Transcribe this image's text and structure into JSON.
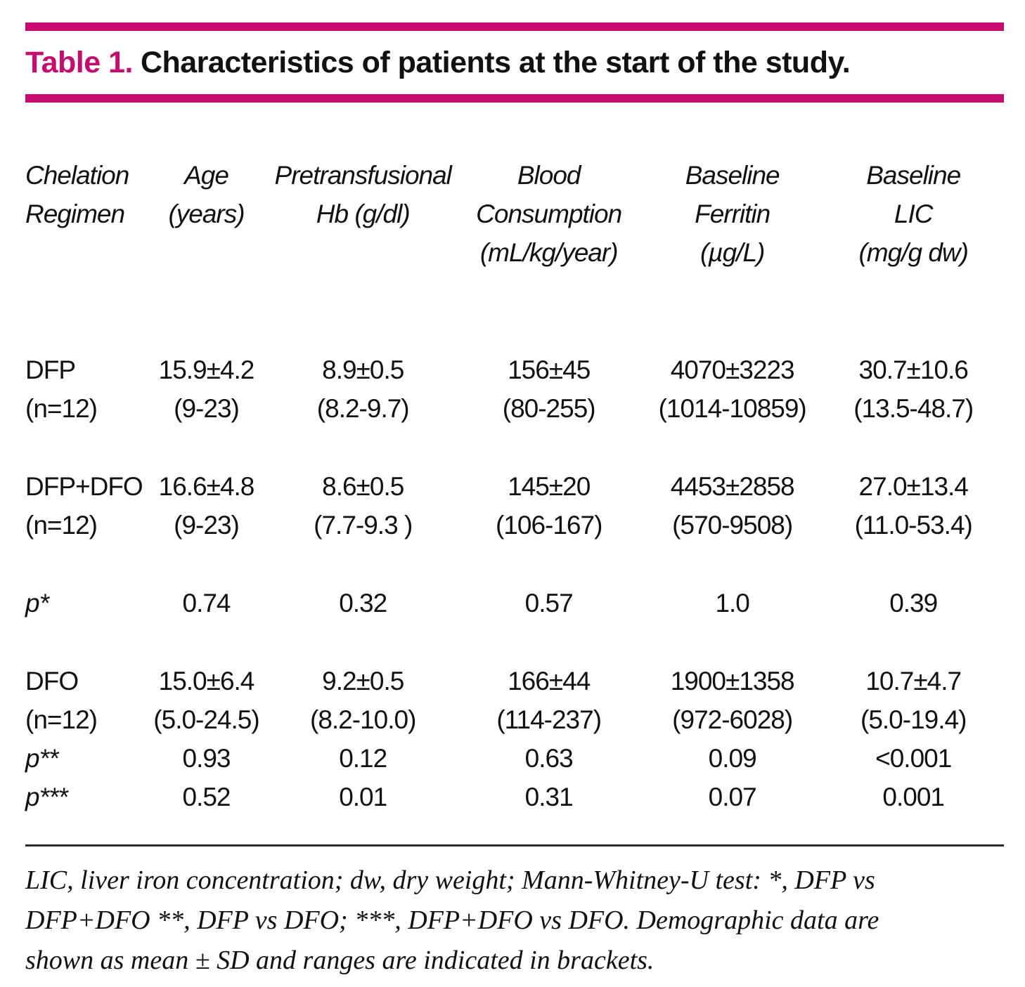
{
  "title": {
    "label": "Table 1.",
    "text": "Characteristics of patients at the start of the study."
  },
  "colors": {
    "accent": "#c60d6f",
    "text": "#111111",
    "rule_thin": "#2b2b2b",
    "background": "#ffffff"
  },
  "table": {
    "headers": [
      "Chelation\nRegimen",
      "Age\n(years)",
      "Pretransfusional\nHb (g/dl)",
      "Blood\nConsumption\n(mL/kg/year)",
      "Baseline\nFerritin\n(µg/L)",
      "Baseline\nLIC\n(mg/g dw)"
    ],
    "rows": [
      {
        "label": "DFP (n=12)",
        "cells": [
          "DFP\n(n=12)",
          "15.9±4.2\n(9-23)",
          "8.9±0.5\n(8.2-9.7)",
          "156±45\n(80-255)",
          "4070±3223\n(1014-10859)",
          "30.7±10.6\n(13.5-48.7)"
        ]
      },
      {
        "label": "DFP+DFO (n=12)",
        "cells": [
          "DFP+DFO\n(n=12)",
          "16.6±4.8\n(9-23)",
          "8.6±0.5\n(7.7-9.3 )",
          "145±20\n(106-167)",
          "4453±2858\n(570-9508)",
          "27.0±13.4\n(11.0-53.4)"
        ]
      },
      {
        "label": "p*",
        "cells": [
          "p*",
          "0.74",
          "0.32",
          "0.57",
          "1.0",
          "0.39"
        ]
      },
      {
        "label": "DFO (n=12)",
        "cells": [
          "DFO\n(n=12)",
          "15.0±6.4\n(5.0-24.5)",
          "9.2±0.5\n(8.2-10.0)",
          "166±44\n(114-237)",
          "1900±1358\n(972-6028)",
          "10.7±4.7\n(5.0-19.4)"
        ]
      },
      {
        "label": "p**",
        "cells": [
          "p**",
          "0.93",
          "0.12",
          "0.63",
          "0.09",
          "<0.001"
        ]
      },
      {
        "label": "p***",
        "cells": [
          "p***",
          "0.52",
          "0.01",
          "0.31",
          "0.07",
          "0.001"
        ]
      }
    ]
  },
  "footnote": "LIC, liver iron concentration; dw, dry weight; Mann-Whitney-U test: *, DFP vs\nDFP+DFO **, DFP vs DFO; ***, DFP+DFO vs DFO. Demographic data are\nshown as mean ± SD and ranges are indicated in brackets."
}
